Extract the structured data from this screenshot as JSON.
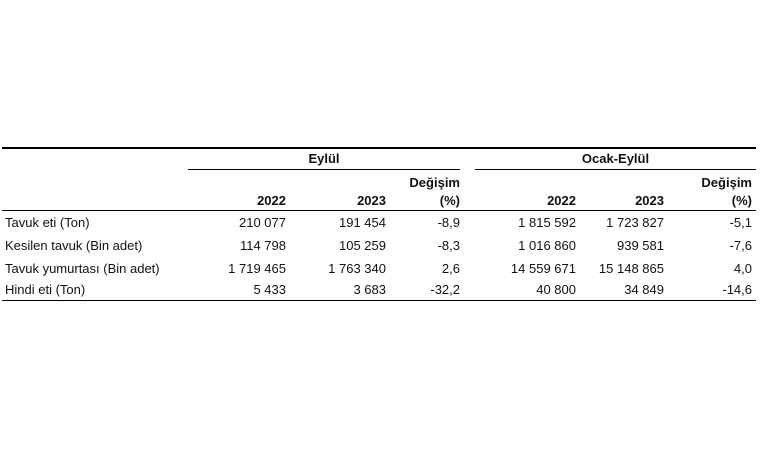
{
  "table": {
    "groups": [
      "Eylül",
      "Ocak-Eylül"
    ],
    "columns": {
      "y1": "2022",
      "y2": "2023",
      "chg1": "Değişim",
      "chg2": "(%)"
    },
    "rows": [
      {
        "label": "Tavuk eti (Ton)",
        "values": [
          "210 077",
          "191 454",
          "-8,9",
          "1 815 592",
          "1 723 827",
          "-5,1"
        ]
      },
      {
        "label": "Kesilen tavuk (Bin adet)",
        "values": [
          "114 798",
          "105 259",
          "-8,3",
          "1 016 860",
          "939 581",
          "-7,6"
        ]
      },
      {
        "label": "Tavuk yumurtası (Bin adet)",
        "values": [
          "1 719 465",
          "1 763 340",
          "2,6",
          "14 559 671",
          "15 148 865",
          "4,0"
        ]
      },
      {
        "label": "Hindi eti (Ton)",
        "values": [
          "5 433",
          "3 683",
          "-32,2",
          "40 800",
          "34 849",
          "-14,6"
        ]
      }
    ]
  }
}
